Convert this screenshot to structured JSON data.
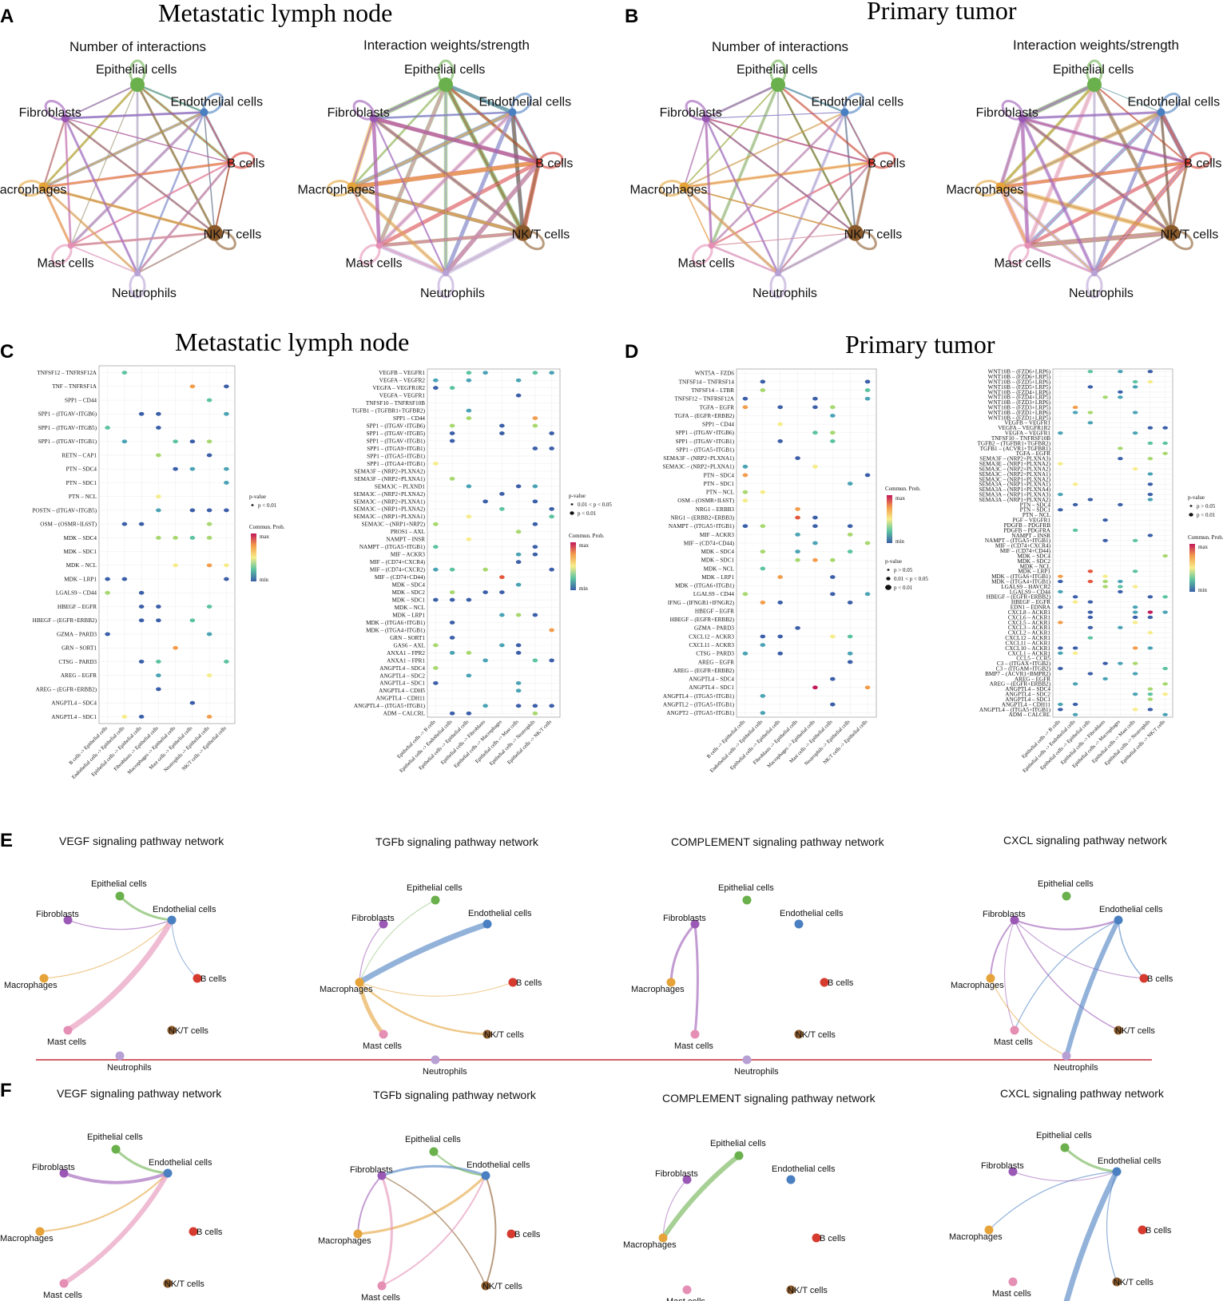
{
  "colors": {
    "cell_types": {
      "Epithelial cells": "#6ab04c",
      "Endothelial cells": "#4a7fc1",
      "B cells": "#d63b2f",
      "NK/T cells": "#8b5a2b",
      "Neutrophils": "#b7a0d4",
      "Mast cells": "#e58fb5",
      "Macrophages": "#e5a33a",
      "Fibroblasts": "#9b59b6"
    },
    "divider": "#c62b3c"
  },
  "cell_types": [
    "Epithelial cells",
    "Endothelial cells",
    "B cells",
    "NK/T cells",
    "Neutrophils",
    "Mast cells",
    "Macrophages",
    "Fibroblasts"
  ],
  "panels": {
    "A": {
      "letter": "A",
      "title": "Metastatic  lymph node",
      "left_subtitle": "Number of interactions",
      "right_subtitle": "Interaction weights/strength"
    },
    "B": {
      "letter": "B",
      "title": "Primary tumor",
      "left_subtitle": "Number of interactions",
      "right_subtitle": "Interaction weights/strength"
    },
    "C": {
      "letter": "C",
      "title": "Metastatic  lymph node",
      "left": {
        "ligand_receptor_pairs": [
          "TNFSF12 – TNFRSF12A",
          "TNF – TNFRSF1A",
          "SPP1 – CD44",
          "SPP1 – (ITGAV+ITGB6)",
          "SPP1 – (ITGAV+ITGB5)",
          "SPP1 – (ITGAV+ITGB1)",
          "RETN – CAP1",
          "PTN – SDC4",
          "PTN – SDC1",
          "PTN – NCL",
          "POSTN – (ITGAV+ITGB5)",
          "OSM – (OSMR+IL6ST)",
          "MDK – SDC4",
          "MDK – SDC1",
          "MDK – NCL",
          "MDK – LRP1",
          "LGALS9 – CD44",
          "HBEGF – EGFR",
          "HBEGF – (EGFR+ERBB2)",
          "GZMA – PARD3",
          "GRN – SORT1",
          "CTSG – PARD3",
          "AREG – EGFR",
          "AREG – (EGFR+ERBB2)",
          "ANGPTL4 – SDC4",
          "ANGPTL4 – SDC1"
        ],
        "source_target_pairs": [
          "B cells -> Epithelial cells",
          "Endothelial cells -> Epithelial cells",
          "Epithelial cells -> Epithelial cells",
          "Fibroblasts -> Epithelial cells",
          "Macrophages -> Epithelial cells",
          "Mast cells -> Epithelial cells",
          "Neutrophils -> Epithelial cells",
          "NK/T cells -> Epithelial cells"
        ],
        "legend_pvalue_title": "p-value",
        "legend_pvalue_items": [
          "p < 0.01"
        ],
        "legend_prob_title": "Commun. Prob.",
        "legend_prob_max": "max",
        "legend_prob_min": "min"
      },
      "right": {
        "ligand_receptor_pairs": [
          "VEGFB – VEGFR1",
          "VEGFA – VEGFR2",
          "VEGFA – VEGFR1R2",
          "VEGFA – VEGFR1",
          "TNFSF10 – TNFRSF10B",
          "TGFB1 – (TGFBR1+TGFBR2)",
          "SPP1 – CD44",
          "SPP1 – (ITGAV+ITGB6)",
          "SPP1 – (ITGAV+ITGB5)",
          "SPP1 – (ITGAV+ITGB1)",
          "SPP1 – (ITGA9+ITGB1)",
          "SPP1 – (ITGA5+ITGB1)",
          "SPP1 – (ITGA4+ITGB1)",
          "SEMA3F – (NRP2+PLXNA2)",
          "SEMA3F – (NRP2+PLXNA1)",
          "SEMA3C – PLXND1",
          "SEMA3C – (NRP2+PLXNA2)",
          "SEMA3C – (NRP2+PLXNA1)",
          "SEMA3C – (NRP1+PLXNA2)",
          "SEMA3C – (NRP1+PLXNA1)",
          "SEMA3C – (NRP1+NRP2)",
          "PROS1 – AXL",
          "NAMPT – INSR",
          "NAMPT – (ITGA5+ITGB1)",
          "MIF – ACKR3",
          "MIF – (CD74+CXCR4)",
          "MIF – (CD74+CXCR2)",
          "MIF – (CD74+CD44)",
          "MDK – SDC4",
          "MDK – SDC2",
          "MDK – SDC1",
          "MDK – NCL",
          "MDK – LRP1",
          "MDK – (ITGA6+ITGB1)",
          "MDK – (ITGA4+ITGB1)",
          "GRN – SORT1",
          "GAS6 – AXL",
          "ANXA1 – FPR2",
          "ANXA1 – FPR1",
          "ANGPTL4 – SDC4",
          "ANGPTL4 – SDC2",
          "ANGPTL4 – SDC1",
          "ANGPTL4 – CDH5",
          "ANGPTL4 – CDH11",
          "ANGPTL4 – (ITGA5+ITGB1)",
          "ADM – CALCRL"
        ],
        "source_target_pairs": [
          "Epithelial cells -> B cells",
          "Epithelial cells -> Endothelial cells",
          "Epithelial cells -> Epithelial cells",
          "Epithelial cells -> Fibroblasts",
          "Epithelial cells -> Macrophages",
          "Epithelial cells -> Mast cells",
          "Epithelial cells -> Neutrophils",
          "Epithelial cells -> NK/T cells"
        ],
        "legend_pvalue_title": "p-value",
        "legend_pvalue_items": [
          "0.01 < p < 0.05",
          "p < 0.01"
        ],
        "legend_prob_title": "Commun. Prob.",
        "legend_prob_max": "max",
        "legend_prob_min": "min"
      }
    },
    "D": {
      "letter": "D",
      "title": "Primary tumor",
      "left": {
        "ligand_receptor_pairs": [
          "WNT5A – FZD6",
          "TNFSF14 – TNFRSF14",
          "TNFSF14 – LTBR",
          "TNFSF12 – TNFRSF12A",
          "TGFA – EGFR",
          "TGFA – (EGFR+ERBB2)",
          "SPP1 – CD44",
          "SPP1 – (ITGAV+ITGB6)",
          "SPP1 – (ITGAV+ITGB1)",
          "SPP1 – (ITGA5+ITGB1)",
          "SEMA3F – (NRP2+PLXNA1)",
          "SEMA3C – (NRP2+PLXNA1)",
          "PTN – SDC4",
          "PTN – SDC1",
          "PTN – NCL",
          "OSM – (OSMR+IL6ST)",
          "NRG1 – ERBB3",
          "NRG1 – (ERBB2+ERBB3)",
          "NAMPT – (ITGA5+ITGB1)",
          "MIF – ACKR3",
          "MIF – (CD74+CD44)",
          "MDK – SDC4",
          "MDK – SDC1",
          "MDK – NCL",
          "MDK – LRP1",
          "MDK – (ITGA6+ITGB1)",
          "LGALS9 – CD44",
          "IFNG – (IFNGR1+IFNGR2)",
          "HBEGF – EGFR",
          "HBEGF – (EGFR+ERBB2)",
          "GZMA – PARD3",
          "CXCL12 – ACKR3",
          "CXCL11 – ACKR3",
          "CTSG – PARD3",
          "AREG – EGFR",
          "AREG – (EGFR+ERBB2)",
          "ANGPTL4 – SDC4",
          "ANGPTL4 – SDC1",
          "ANGPTL4 – (ITGA5+ITGB1)",
          "ANGPTL2 – (ITGA5+ITGB1)",
          "ANGPT2 – (ITGA5+ITGB1)"
        ],
        "source_target_pairs": [
          "B cells -> Epithelial cells",
          "Endothelial cells -> Epithelial cells",
          "Epithelial cells -> Epithelial cells",
          "Fibroblasts -> Epithelial cells",
          "Macrophages -> Epithelial cells",
          "Mast cells -> Epithelial cells",
          "Neutrophils -> Epithelial cells",
          "NK/T cells -> Epithelial cells"
        ],
        "legend_prob_title": "Commun. Prob.",
        "legend_prob_max": "max",
        "legend_prob_min": "min",
        "legend_pvalue_title": "p-value",
        "legend_pvalue_items": [
          "p > 0.05",
          "0.01 < p < 0.05",
          "p < 0.01"
        ]
      },
      "right": {
        "ligand_receptor_pairs": [
          "WNT10B – (FZD6+LRP6)",
          "WNT10B – (FZD6+LRP5)",
          "WNT10B – (FZD5+LRP6)",
          "WNT10B – (FZD5+LRP5)",
          "WNT10B – (FZD4+LRP6)",
          "WNT10B – (FZD4+LRP5)",
          "WNT10B – (FZD3+LRP6)",
          "WNT10B – (FZD3+LRP5)",
          "WNT10B – (FZD1+LRP6)",
          "WNT10B – (FZD1+LRP5)",
          "VEGFB – VEGFR1",
          "VEGFA – VEGFR1R2",
          "VEGFA – VEGFR1",
          "TNFSF10 – TNFRSF10B",
          "TGFB2 – (TGFBR1+TGFBR2)",
          "TGFB1 – (ACVR1+TGFBR1)",
          "TGFA – EGFR",
          "SEMA3F – (NRP2+PLXNA3)",
          "SEMA3E – (NRP1+PLXNA2)",
          "SEMA3C – (NRP2+PLXNA2)",
          "SEMA3C – (NRP2+PLXNA1)",
          "SEMA3C – (NRP1+PLXNA2)",
          "SEMA3A – (NRP1+PLXNA1)",
          "SEMA3A – (NRP1+PLXNA4)",
          "SEMA3A – (NRP1+PLXNA3)",
          "SEMA3A – (NRP1+PLXNA2)",
          "PTN – SDC4",
          "PTN – SDC1",
          "PTN – NCL",
          "PGF – VEGFR1",
          "PDGFB – PDGFRB",
          "PDGFB – PDGFRA",
          "NAMPT – INSR",
          "NAMPT – (ITGA5+ITGB1)",
          "MIF – (CD74+CXCR4)",
          "MIF – (CD74+CD44)",
          "MDK – SDC4",
          "MDK – SDC2",
          "MDK – NCL",
          "MDK – LRP1",
          "MDK – (ITGA6+ITGB1)",
          "MDK – (ITGA4+ITGB1)",
          "LGALS9 – HAVCR2",
          "LGALS9 – CD44",
          "HBEGF – (EGFR+ERBB2)",
          "HBEGF – EGFR",
          "EDN1 – EDNRA",
          "CXCL8 – ACKR1",
          "CXCL6 – ACKR1",
          "CXCL5 – ACKR1",
          "CXCL3 – ACKR1",
          "CXCL2 – ACKR1",
          "CXCL12 – ACKR1",
          "CXCL11 – ACKR1",
          "CXCL10 – ACKR1",
          "CXCL1 – ACKR1",
          "CCL5 – CCR5",
          "C3 – (ITGAX+ITGB2)",
          "C3 – (ITGAM+ITGB2)",
          "BMP7 – (ACVR1+BMPR2)",
          "AREG – EGFR",
          "AREG – (EGFR+ERBB2)",
          "ANGPTL4 – SDC4",
          "ANGPTL4 – SDC2",
          "ANGPTL4 – SDC1",
          "ANGPTL4 – CDH11",
          "ANGPTL4 – (ITGA5+ITGB1)",
          "ADM – CALCRL"
        ],
        "source_target_pairs": [
          "Epithelial cells -> B cells",
          "Epithelial cells -> Endothelial cells",
          "Epithelial cells -> Epithelial cells",
          "Epithelial cells -> Fibroblasts",
          "Epithelial cells -> Macrophages",
          "Epithelial cells -> Mast cells",
          "Epithelial cells -> Neutrophils",
          "Epithelial cells -> NK/T cells"
        ],
        "legend_pvalue_title": "p-value",
        "legend_pvalue_items": [
          "p > 0.05",
          "p < 0.01"
        ],
        "legend_prob_title": "Commun. Prob.",
        "legend_prob_max": "max",
        "legend_prob_min": "min"
      }
    },
    "E": {
      "letter": "E",
      "networks": [
        "VEGF signaling pathway network",
        "TGFb signaling pathway network",
        "COMPLEMENT signaling pathway network",
        "CXCL signaling pathway network"
      ]
    },
    "F": {
      "letter": "F",
      "networks": [
        "VEGF signaling pathway network",
        "TGFb signaling pathway network",
        "COMPLEMENT signaling pathway network",
        "CXCL signaling pathway network"
      ]
    }
  }
}
